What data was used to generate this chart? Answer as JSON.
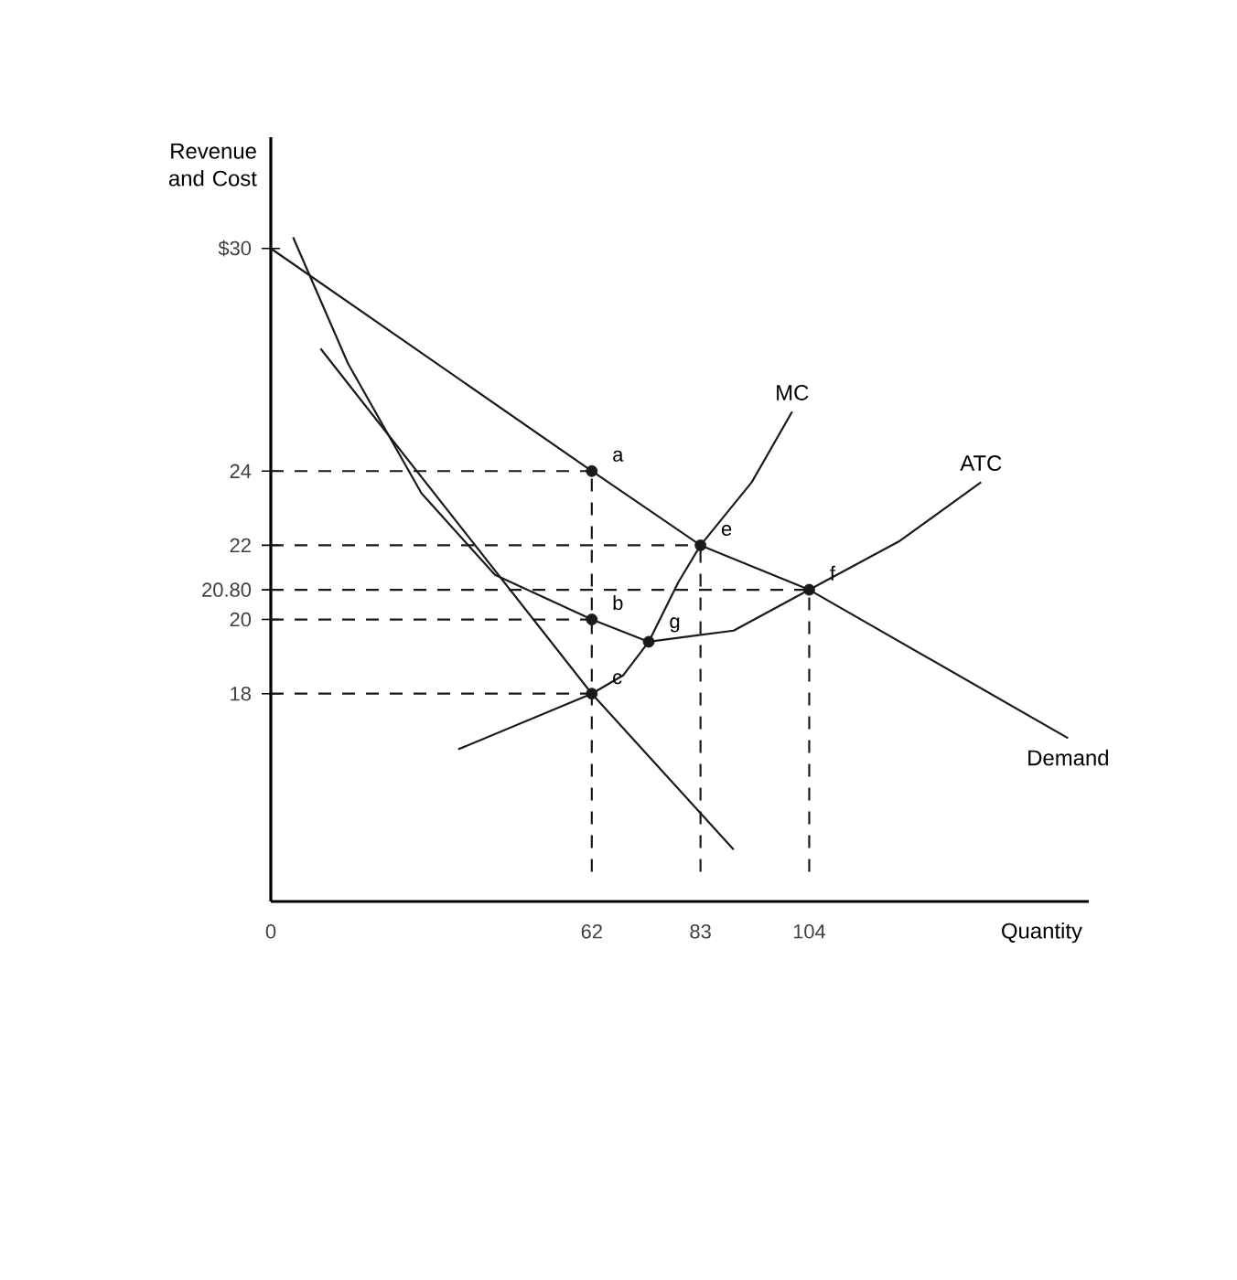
{
  "chart_data": {
    "type": "line",
    "xlabel": "Quantity",
    "ylabel": "Revenue and Cost",
    "xlim": [
      0,
      158
    ],
    "ylim": [
      12.4,
      33
    ],
    "xticks": [
      0,
      62,
      83,
      104
    ],
    "yticks": [
      18,
      20,
      {
        "value": 20.8,
        "label": "20.80"
      },
      22,
      24,
      {
        "value": 30,
        "label": "$30"
      }
    ],
    "grid": false,
    "series": [
      {
        "name": "Demand",
        "color": "#1a1a1a",
        "x": [
          0,
          62,
          83,
          104,
          154
        ],
        "values": [
          30,
          24,
          22,
          20.8,
          16.8
        ]
      },
      {
        "color": "#1a1a1a",
        "x": [
          9.6,
          62,
          89.4
        ],
        "values": [
          27.3,
          18,
          13.8
        ]
      },
      {
        "name": "ATC",
        "color": "#1a1a1a",
        "x": [
          4.3,
          14.9,
          29.1,
          43.3,
          62,
          73,
          89.4,
          104,
          121.3,
          137.2
        ],
        "values": [
          30.3,
          26.9,
          23.4,
          21.2,
          20,
          19.4,
          19.7,
          20.8,
          22.1,
          23.7
        ]
      },
      {
        "name": "MC",
        "color": "#1a1a1a",
        "x": [
          36.2,
          62,
          68.1,
          73,
          78.7,
          83,
          92.9,
          100.7
        ],
        "values": [
          16.5,
          18,
          18.5,
          19.4,
          21,
          22,
          23.7,
          25.6
        ]
      },
      {
        "line_style": "dashed",
        "color": "#1a1a1a",
        "x": [
          0,
          62
        ],
        "values": [
          24,
          24
        ]
      },
      {
        "line_style": "dashed",
        "color": "#1a1a1a",
        "x": [
          0,
          83
        ],
        "values": [
          22,
          22
        ]
      },
      {
        "line_style": "dashed",
        "color": "#1a1a1a",
        "x": [
          0,
          104
        ],
        "values": [
          20.8,
          20.8
        ]
      },
      {
        "line_style": "dashed",
        "color": "#1a1a1a",
        "x": [
          0,
          62
        ],
        "values": [
          20,
          20
        ]
      },
      {
        "line_style": "dashed",
        "color": "#1a1a1a",
        "x": [
          0,
          62
        ],
        "values": [
          18,
          18
        ]
      },
      {
        "line_style": "dashed",
        "color": "#1a1a1a",
        "x": [
          62,
          62
        ],
        "values": [
          13.2,
          24
        ]
      },
      {
        "line_style": "dashed",
        "color": "#1a1a1a",
        "x": [
          83,
          83
        ],
        "values": [
          13.2,
          22
        ]
      },
      {
        "line_style": "dashed",
        "color": "#1a1a1a",
        "x": [
          104,
          104
        ],
        "values": [
          13.2,
          20.8
        ]
      },
      {
        "type": "scatter",
        "marker": "circle",
        "color": "#1a1a1a",
        "x": [
          62,
          62,
          62,
          73,
          83,
          104
        ],
        "values": [
          24,
          20,
          18,
          19.4,
          22,
          20.8
        ]
      }
    ],
    "annotations": [
      {
        "text": "a",
        "x": 62,
        "y": 24
      },
      {
        "text": "b",
        "x": 62,
        "y": 20
      },
      {
        "text": "c",
        "x": 62,
        "y": 18
      },
      {
        "text": "g",
        "x": 73,
        "y": 19.4
      },
      {
        "text": "e",
        "x": 83,
        "y": 22
      },
      {
        "text": "f",
        "x": 104,
        "y": 20.8
      }
    ]
  }
}
